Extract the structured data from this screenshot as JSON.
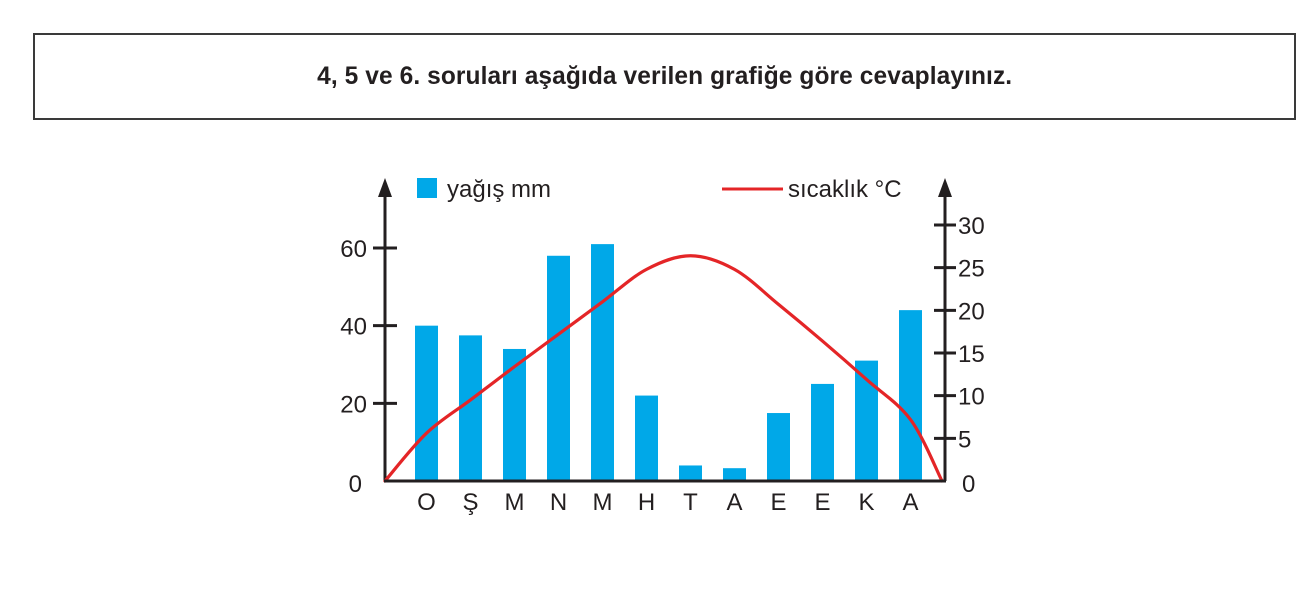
{
  "header": {
    "question": "4, 5 ve 6. soruları aşağıda verilen grafiğe göre cevaplayınız."
  },
  "colors": {
    "bar": "#00a8e8",
    "line": "#e42527",
    "axis": "#231f20"
  },
  "legend": {
    "bar_label": "yağış mm",
    "line_label": "sıcaklık °C"
  },
  "chart_data": {
    "type": "bar+line",
    "title": "",
    "categories": [
      "O",
      "Ş",
      "M",
      "N",
      "M",
      "H",
      "T",
      "A",
      "E",
      "E",
      "K",
      "A"
    ],
    "series": [
      {
        "name": "yağış mm",
        "type": "bar",
        "axis": "left",
        "values": [
          40,
          37.5,
          34,
          58,
          61,
          22,
          4,
          3.3,
          17.5,
          25,
          31,
          44
        ]
      },
      {
        "name": "sıcaklık °C",
        "type": "line",
        "axis": "right",
        "values": [
          5.6,
          9.5,
          13.4,
          17.2,
          21,
          24.8,
          26.4,
          24.8,
          20.7,
          16.4,
          11.9,
          7.2
        ],
        "start_value": 0,
        "end_value": 0
      }
    ],
    "xlabel": "",
    "ylabel_left": "yağış mm",
    "ylabel_right": "sıcaklık °C",
    "ylim_left": [
      0,
      70
    ],
    "ylim_right": [
      0,
      30
    ],
    "yticks_left": [
      0,
      20,
      40,
      60
    ],
    "yticks_right": [
      0,
      5,
      10,
      15,
      20,
      25,
      30
    ],
    "grid": false,
    "legend_position": "top"
  }
}
